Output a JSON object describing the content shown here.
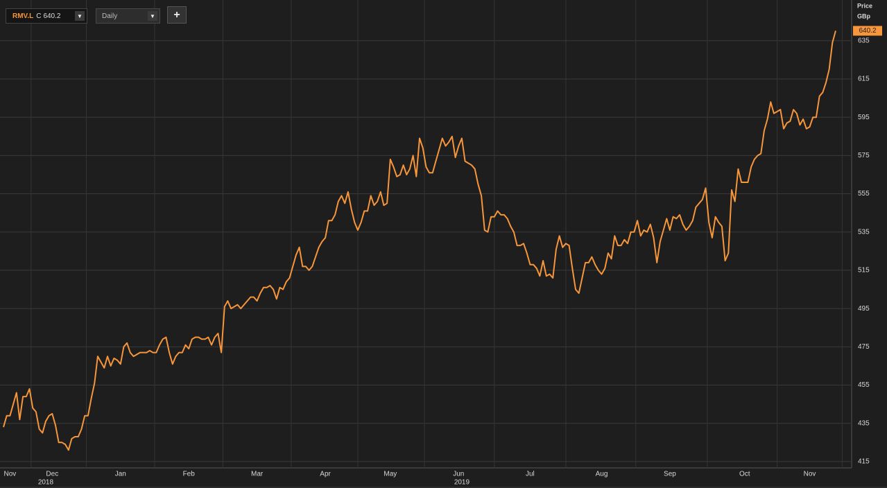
{
  "toolbar": {
    "symbol": "RMV.L",
    "close_label": "C",
    "interval": "Daily",
    "add_button": "+"
  },
  "chart_data": {
    "type": "line",
    "ylabel": "Price",
    "yunit": "GBp",
    "ylim": [
      411.7,
      656.3
    ],
    "yticks": [
      415,
      435,
      455,
      475,
      495,
      515,
      535,
      555,
      575,
      595,
      615,
      635
    ],
    "grid": true,
    "categories": [
      null,
      null,
      "Nov",
      null,
      null,
      null,
      null,
      null,
      null,
      null,
      null,
      null,
      null,
      null,
      null,
      "Dec",
      null,
      null,
      null,
      null,
      null,
      null,
      null,
      null,
      null,
      null,
      null,
      null,
      null,
      null,
      null,
      null,
      null,
      null,
      null,
      null,
      "Jan",
      null,
      null,
      null,
      null,
      null,
      null,
      null,
      null,
      null,
      null,
      null,
      null,
      null,
      null,
      null,
      null,
      null,
      null,
      null,
      null,
      "Feb",
      null,
      null,
      null,
      null,
      null,
      null,
      null,
      null,
      null,
      null,
      null,
      null,
      null,
      null,
      null,
      null,
      null,
      null,
      null,
      null,
      "Mar",
      null,
      null,
      null,
      null,
      null,
      null,
      null,
      null,
      null,
      null,
      null,
      null,
      null,
      null,
      null,
      null,
      null,
      null,
      null,
      null,
      "Apr",
      null,
      null,
      null,
      null,
      null,
      null,
      null,
      null,
      null,
      null,
      null,
      null,
      null,
      null,
      null,
      null,
      null,
      null,
      null,
      "May",
      null,
      null,
      null,
      null,
      null,
      null,
      null,
      null,
      null,
      null,
      null,
      null,
      null,
      null,
      null,
      null,
      null,
      null,
      null,
      null,
      "Jun",
      null,
      null,
      null,
      null,
      null,
      null,
      null,
      null,
      null,
      null,
      null,
      null,
      null,
      null,
      null,
      null,
      null,
      null,
      null,
      null,
      null,
      "Jul",
      null,
      null,
      null,
      null,
      null,
      null,
      null,
      null,
      null,
      null,
      null,
      null,
      null,
      null,
      null,
      null,
      null,
      null,
      null,
      null,
      null,
      "Aug",
      null,
      null,
      null,
      null,
      null,
      null,
      null,
      null,
      null,
      null,
      null,
      null,
      null,
      null,
      null,
      null,
      null,
      null,
      null,
      null,
      "Sep",
      null,
      null,
      null,
      null,
      null,
      null,
      null,
      null,
      null,
      null,
      null,
      null,
      null,
      null,
      null,
      null,
      null,
      null,
      null,
      null,
      null,
      null,
      "Oct",
      null,
      null,
      null,
      null,
      null,
      null,
      null,
      null,
      null,
      null,
      null,
      null,
      null,
      null,
      null,
      null,
      null,
      null,
      null,
      "Nov",
      null,
      null,
      null,
      null,
      null,
      null,
      null,
      null
    ],
    "year_categories": [
      null,
      null,
      null,
      null,
      null,
      null,
      null,
      null,
      null,
      null,
      null,
      null,
      null,
      "2018",
      null,
      null,
      null,
      null,
      null,
      null,
      null,
      null,
      null,
      null,
      null,
      null,
      null,
      null,
      null,
      null,
      null,
      null,
      null,
      null,
      null,
      null,
      null,
      null,
      null,
      null,
      null,
      null,
      null,
      null,
      null,
      null,
      null,
      null,
      null,
      null,
      null,
      null,
      null,
      null,
      null,
      null,
      null,
      null,
      null,
      null,
      null,
      null,
      null,
      null,
      null,
      null,
      null,
      null,
      null,
      null,
      null,
      null,
      null,
      null,
      null,
      null,
      null,
      null,
      null,
      null,
      null,
      null,
      null,
      null,
      null,
      null,
      null,
      null,
      null,
      null,
      null,
      null,
      null,
      null,
      null,
      null,
      null,
      null,
      null,
      null,
      null,
      null,
      null,
      null,
      null,
      null,
      null,
      null,
      null,
      null,
      null,
      null,
      null,
      null,
      null,
      null,
      null,
      null,
      null,
      null,
      null,
      null,
      null,
      null,
      null,
      null,
      null,
      null,
      null,
      null,
      null,
      null,
      null,
      null,
      null,
      null,
      null,
      null,
      null,
      null,
      null,
      "2019",
      null,
      null,
      null,
      null,
      null,
      null,
      null,
      null,
      null,
      null,
      null,
      null,
      null,
      null,
      null,
      null,
      null,
      null,
      null,
      null,
      null,
      null,
      null,
      null,
      null,
      null,
      null,
      null,
      null,
      null,
      null,
      null,
      null,
      null,
      null,
      null,
      null,
      null,
      null,
      null,
      null,
      null,
      null,
      null,
      null,
      null,
      null,
      null,
      null,
      null,
      null,
      null,
      null,
      null,
      null,
      null,
      null,
      null,
      null,
      null,
      null,
      null,
      null,
      null,
      null,
      null,
      null,
      null,
      null,
      null,
      null,
      null,
      null,
      null,
      null,
      null,
      null,
      null,
      null,
      null,
      null,
      null,
      null,
      null,
      null,
      null,
      null,
      null,
      null,
      null,
      null,
      null,
      null,
      null,
      null,
      null,
      null,
      null,
      null,
      null,
      null,
      null,
      null,
      null,
      null,
      null,
      null,
      null,
      null,
      null,
      null,
      null,
      null,
      null,
      null
    ],
    "series": [
      {
        "name": "RMV.L",
        "color": "#f7963b",
        "values": [
          433,
          439,
          439,
          445,
          451,
          437,
          449,
          449,
          453,
          443,
          441,
          432,
          430,
          436,
          439,
          440,
          434,
          425,
          425,
          424,
          421,
          427,
          428,
          428,
          432,
          439,
          439,
          448,
          456,
          470,
          467,
          464,
          470,
          465,
          469,
          468,
          466,
          475,
          477,
          472,
          470,
          471,
          472,
          472,
          472,
          473,
          472,
          472,
          476,
          479,
          480,
          472,
          466,
          470,
          472,
          472,
          476,
          474,
          479,
          480,
          480,
          479,
          479,
          480,
          476,
          480,
          482,
          472,
          496,
          499,
          495,
          496,
          497,
          495,
          497,
          499,
          501,
          501,
          499,
          503,
          506,
          506,
          507,
          505,
          500,
          506,
          505,
          509,
          511,
          517,
          523,
          527,
          517,
          517,
          515,
          517,
          522,
          527,
          530,
          532,
          541,
          541,
          544,
          551,
          554,
          550,
          556,
          547,
          540,
          536,
          540,
          546,
          546,
          554,
          549,
          551,
          556,
          549,
          550,
          573,
          569,
          564,
          565,
          570,
          565,
          568,
          575,
          564,
          584,
          579,
          569,
          566,
          566,
          572,
          578,
          584,
          580,
          582,
          585,
          574,
          580,
          584,
          572,
          571,
          570,
          568,
          560,
          554,
          536,
          535,
          543,
          543,
          546,
          544,
          544,
          542,
          538,
          535,
          528,
          528,
          529,
          524,
          518,
          518,
          516,
          512,
          520,
          512,
          513,
          511,
          526,
          533,
          527,
          529,
          528,
          516,
          505,
          503,
          511,
          519,
          519,
          522,
          518,
          515,
          513,
          516,
          524,
          521,
          533,
          528,
          528,
          531,
          529,
          535,
          535,
          541,
          533,
          536,
          535,
          539,
          532,
          519,
          530,
          536,
          542,
          536,
          543,
          542,
          544,
          539,
          536,
          538,
          541,
          548,
          550,
          552,
          558,
          540,
          532,
          543,
          540,
          538,
          520,
          524,
          557,
          551,
          568,
          561,
          561,
          561,
          569,
          573,
          575,
          576,
          588,
          594,
          603,
          597,
          598,
          599,
          589,
          592,
          593,
          599,
          597,
          591,
          594,
          589,
          590,
          595,
          595,
          606,
          608,
          613,
          620,
          634,
          640.2
        ]
      }
    ]
  }
}
